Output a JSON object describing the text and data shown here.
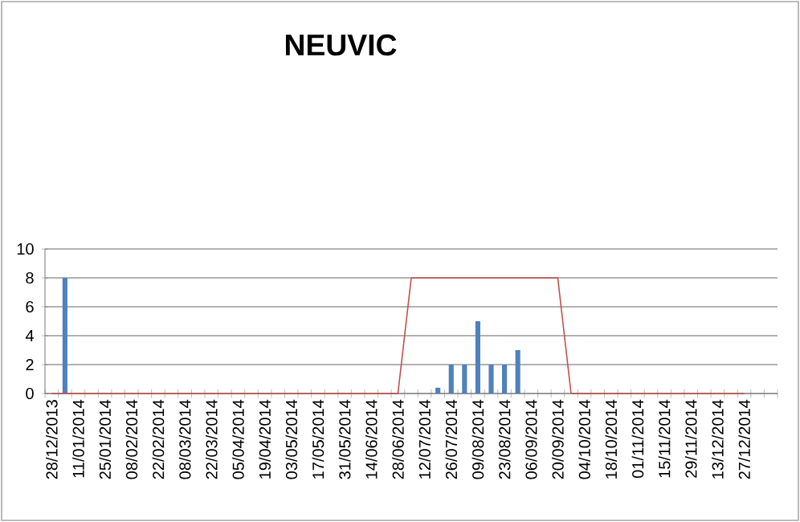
{
  "chart_data": {
    "type": "bar",
    "title": "NEUVIC",
    "categories": [
      "28/12/2013",
      null,
      "11/01/2014",
      null,
      "25/01/2014",
      null,
      "08/02/2014",
      null,
      "22/02/2014",
      null,
      "08/03/2014",
      null,
      "22/03/2014",
      null,
      "05/04/2014",
      null,
      "19/04/2014",
      null,
      "03/05/2014",
      null,
      "17/05/2014",
      null,
      "31/05/2014",
      null,
      "14/06/2014",
      null,
      "28/06/2014",
      null,
      "12/07/2014",
      null,
      "26/07/2014",
      null,
      "09/08/2014",
      null,
      "23/08/2014",
      null,
      "06/09/2014",
      null,
      "20/09/2014",
      null,
      "04/10/2014",
      null,
      "18/10/2014",
      null,
      "01/11/2014",
      null,
      "15/11/2014",
      null,
      "29/11/2014",
      null,
      "13/12/2014",
      null,
      "27/12/2014",
      null,
      null
    ],
    "series": [
      {
        "color": "#4f81bd",
        "values": [
          0,
          8,
          0,
          0,
          0,
          0,
          0,
          0,
          0,
          0,
          0,
          0,
          0,
          0,
          0,
          0,
          0,
          0,
          0,
          0,
          0,
          0,
          0,
          0,
          0,
          0,
          0,
          0,
          0,
          0.4,
          2,
          2,
          5,
          2,
          2,
          3,
          0,
          0,
          0,
          0,
          0,
          0,
          0,
          0,
          0,
          0,
          0,
          0,
          0,
          0,
          0,
          0,
          0,
          null,
          null
        ]
      },
      {
        "type": "line",
        "color": "#c0504d",
        "values": [
          0,
          0,
          0,
          0,
          0,
          0,
          0,
          0,
          0,
          0,
          0,
          0,
          0,
          0,
          0,
          0,
          0,
          0,
          0,
          0,
          0,
          0,
          0,
          0,
          0,
          0,
          0,
          8,
          8,
          8,
          8,
          8,
          8,
          8,
          8,
          8,
          8,
          8,
          8,
          0,
          0,
          0,
          0,
          0,
          0,
          0,
          0,
          0,
          0,
          0,
          0,
          0,
          0,
          null,
          null
        ]
      }
    ],
    "ylim": [
      0,
      10
    ],
    "yticks": [
      0,
      2,
      4,
      6,
      8,
      10
    ],
    "grid": "y"
  }
}
